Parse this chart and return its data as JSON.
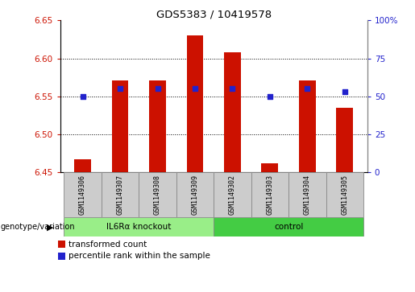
{
  "title": "GDS5383 / 10419578",
  "samples": [
    "GSM1149306",
    "GSM1149307",
    "GSM1149308",
    "GSM1149309",
    "GSM1149302",
    "GSM1149303",
    "GSM1149304",
    "GSM1149305"
  ],
  "transformed_count": [
    6.467,
    6.571,
    6.571,
    6.63,
    6.608,
    6.462,
    6.571,
    6.535
  ],
  "percentile_rank": [
    50,
    55,
    55,
    55,
    55,
    50,
    55,
    53
  ],
  "ylim_left": [
    6.45,
    6.65
  ],
  "ylim_right": [
    0,
    100
  ],
  "yticks_left": [
    6.45,
    6.5,
    6.55,
    6.6,
    6.65
  ],
  "yticks_right": [
    0,
    25,
    50,
    75,
    100
  ],
  "ytick_labels_right": [
    "0",
    "25",
    "50",
    "75",
    "100%"
  ],
  "bar_color": "#cc1100",
  "dot_color": "#2222cc",
  "bar_bottom": 6.45,
  "grid_lines": [
    6.5,
    6.55,
    6.6
  ],
  "group1_label": "IL6Rα knockout",
  "group2_label": "control",
  "group1_indices": [
    0,
    1,
    2,
    3
  ],
  "group2_indices": [
    4,
    5,
    6,
    7
  ],
  "group1_color": "#99ee88",
  "group2_color": "#44cc44",
  "legend_label_red": "transformed count",
  "legend_label_blue": "percentile rank within the sample",
  "genotype_label": "genotype/variation",
  "bar_width": 0.45,
  "cell_bg": "#cccccc",
  "cell_border": "#888888"
}
